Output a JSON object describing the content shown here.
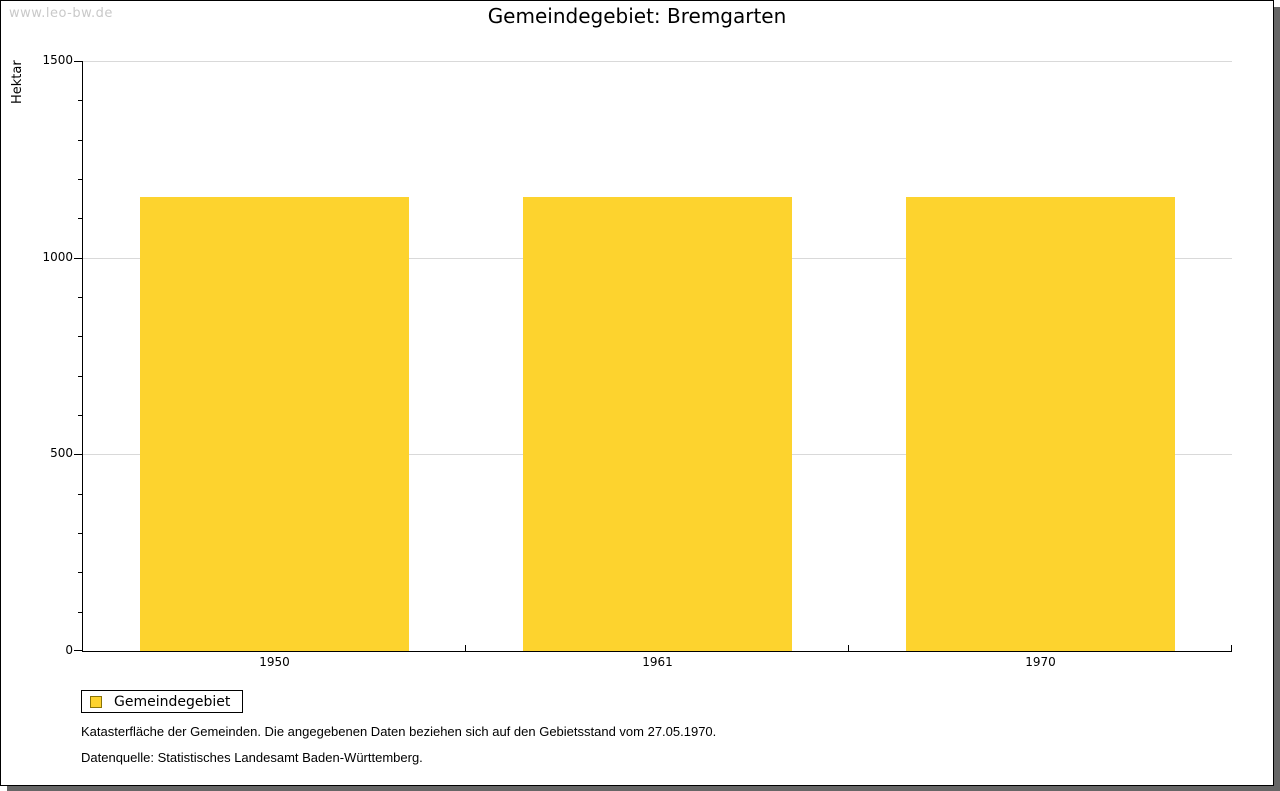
{
  "watermark": "www.leo-bw.de",
  "title": "Gemeindegebiet: Bremgarten",
  "chart_data": {
    "type": "bar",
    "title": "Gemeindegebiet: Bremgarten",
    "categories": [
      "1950",
      "1961",
      "1970"
    ],
    "values": [
      1154,
      1154,
      1154
    ],
    "series_name": "Gemeindegebiet",
    "ylabel": "Hektar",
    "xlabel": "",
    "ylim": [
      0,
      1500
    ],
    "yticks_major": [
      0,
      500,
      1000,
      1500
    ],
    "ytick_minor_step": 100,
    "grid": true,
    "gridline_values": [
      500,
      1000,
      1500
    ],
    "bar_color": "#fdd32e",
    "bar_border_color": "#8a7408",
    "legend_position": "bottom-left"
  },
  "legend": {
    "items": [
      {
        "label": "Gemeindegebiet",
        "color": "#fdd32e"
      }
    ]
  },
  "footnotes": [
    "Katasterfläche der Gemeinden. Die angegebenen Daten beziehen sich auf den Gebietsstand vom 27.05.1970.",
    "Datenquelle: Statistisches Landesamt Baden-Württemberg."
  ]
}
